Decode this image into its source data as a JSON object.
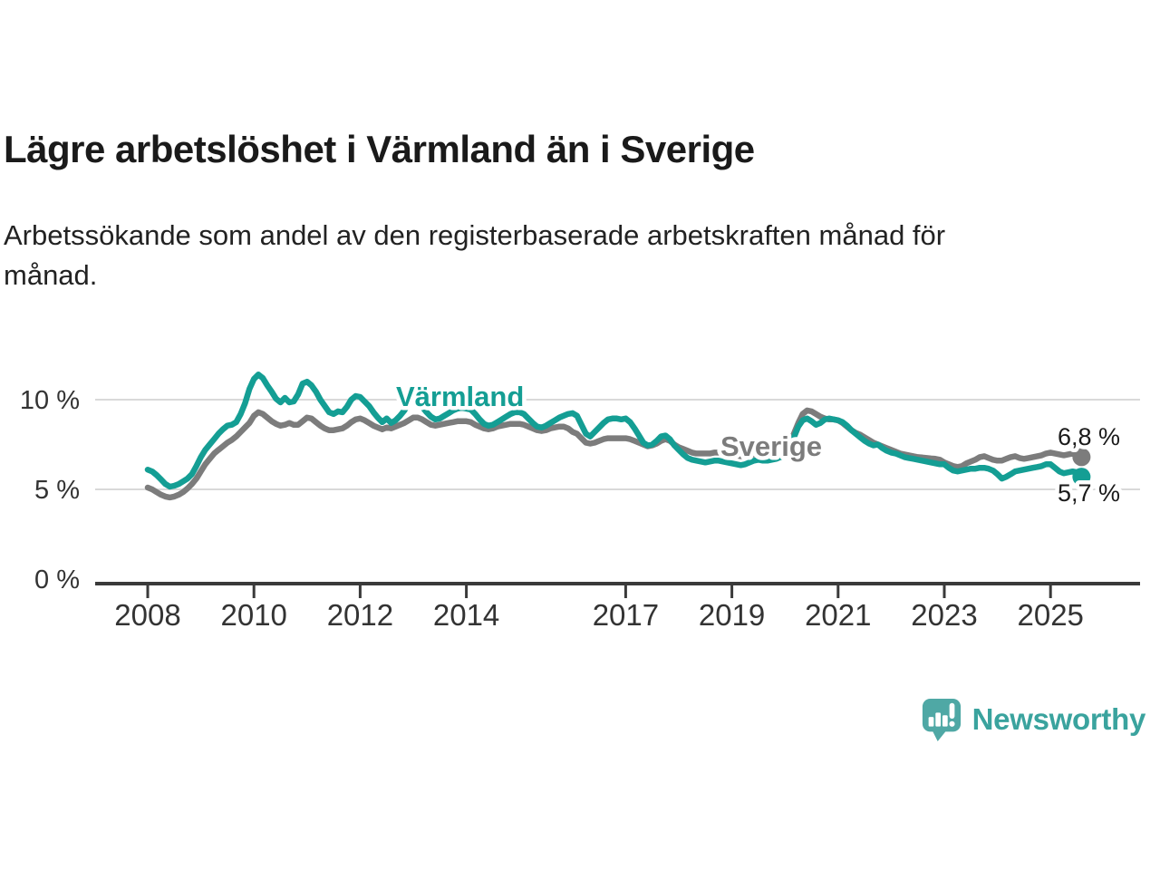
{
  "header": {
    "title": "Lägre arbetslöshet i Värmland än i Sverige",
    "subtitle": "Arbetssökande som andel av den registerbaserade arbetskraften månad för\nmånad."
  },
  "colors": {
    "varmland": "#149e94",
    "sverige": "#7c7c7c",
    "grid": "#d9d9d9",
    "axis": "#3a3a3a",
    "text": "#333333",
    "logo_icon": "#4fa8a5",
    "logo_text": "#3aa39e"
  },
  "chart_data": {
    "type": "line",
    "title": "Lägre arbetslöshet i Värmland än i Sverige",
    "xlabel": "",
    "ylabel": "",
    "x_unit": "month",
    "x_start": "2008-01",
    "x_end": "2025-08",
    "ylim": [
      0,
      12
    ],
    "grid": "horizontal",
    "y_ticks": [
      {
        "value": 0,
        "label": "0 %"
      },
      {
        "value": 5,
        "label": "5 %"
      },
      {
        "value": 10,
        "label": "10 %"
      }
    ],
    "x_ticks": [
      {
        "year": 2008,
        "label": "2008"
      },
      {
        "year": 2010,
        "label": "2010"
      },
      {
        "year": 2012,
        "label": "2012"
      },
      {
        "year": 2014,
        "label": "2014"
      },
      {
        "year": 2017,
        "label": "2017"
      },
      {
        "year": 2019,
        "label": "2019"
      },
      {
        "year": 2021,
        "label": "2021"
      },
      {
        "year": 2023,
        "label": "2023"
      },
      {
        "year": 2025,
        "label": "2025"
      }
    ],
    "series": [
      {
        "name": "Värmland",
        "color": "#149e94",
        "end_label": "5,7 %",
        "end_value": 5.7,
        "values": [
          6.1,
          6.0,
          5.8,
          5.55,
          5.3,
          5.15,
          5.2,
          5.3,
          5.45,
          5.6,
          5.85,
          6.3,
          6.8,
          7.2,
          7.5,
          7.8,
          8.1,
          8.35,
          8.55,
          8.6,
          8.75,
          9.2,
          9.8,
          10.6,
          11.15,
          11.4,
          11.2,
          10.8,
          10.45,
          10.05,
          9.85,
          10.1,
          9.85,
          9.9,
          10.3,
          10.9,
          11.0,
          10.8,
          10.45,
          10.0,
          9.65,
          9.3,
          9.2,
          9.35,
          9.3,
          9.6,
          10.0,
          10.2,
          10.15,
          9.9,
          9.65,
          9.3,
          9.0,
          8.75,
          8.95,
          8.7,
          8.85,
          9.1,
          9.4,
          9.8,
          10.0,
          9.9,
          9.6,
          9.3,
          9.05,
          8.9,
          8.95,
          9.1,
          9.25,
          9.4,
          9.5,
          9.55,
          9.5,
          9.45,
          9.2,
          8.9,
          8.65,
          8.55,
          8.6,
          8.75,
          8.9,
          9.05,
          9.2,
          9.3,
          9.3,
          9.2,
          8.95,
          8.7,
          8.5,
          8.45,
          8.55,
          8.7,
          8.85,
          9.0,
          9.1,
          9.2,
          9.25,
          9.1,
          8.6,
          8.1,
          7.95,
          8.2,
          8.45,
          8.7,
          8.9,
          8.95,
          8.95,
          8.9,
          8.95,
          8.75,
          8.4,
          8.0,
          7.6,
          7.45,
          7.5,
          7.7,
          7.95,
          8.0,
          7.8,
          7.45,
          7.2,
          6.95,
          6.75,
          6.65,
          6.6,
          6.55,
          6.5,
          6.55,
          6.6,
          6.6,
          6.55,
          6.5,
          6.45,
          6.4,
          6.35,
          6.4,
          6.5,
          6.6,
          6.65,
          6.6,
          6.6,
          6.65,
          6.7,
          6.8,
          7.0,
          7.3,
          7.9,
          8.5,
          8.85,
          8.95,
          8.8,
          8.6,
          8.7,
          8.9,
          8.95,
          8.9,
          8.85,
          8.75,
          8.55,
          8.3,
          8.1,
          7.9,
          7.7,
          7.55,
          7.45,
          7.5,
          7.3,
          7.15,
          7.05,
          7.0,
          6.9,
          6.8,
          6.75,
          6.7,
          6.65,
          6.6,
          6.55,
          6.5,
          6.45,
          6.4,
          6.4,
          6.2,
          6.05,
          6.0,
          6.05,
          6.1,
          6.15,
          6.15,
          6.2,
          6.2,
          6.15,
          6.05,
          5.85,
          5.6,
          5.7,
          5.85,
          6.0,
          6.05,
          6.1,
          6.15,
          6.2,
          6.25,
          6.3,
          6.4,
          6.4,
          6.2,
          6.0,
          5.9,
          5.95,
          6.0,
          5.95,
          5.7
        ]
      },
      {
        "name": "Sverige",
        "color": "#7c7c7c",
        "end_label": "6,8 %",
        "end_value": 6.8,
        "values": [
          5.1,
          5.0,
          4.85,
          4.7,
          4.6,
          4.55,
          4.6,
          4.7,
          4.85,
          5.05,
          5.3,
          5.6,
          6.0,
          6.4,
          6.7,
          7.0,
          7.2,
          7.4,
          7.6,
          7.75,
          7.95,
          8.2,
          8.45,
          8.7,
          9.1,
          9.3,
          9.2,
          9.0,
          8.8,
          8.65,
          8.55,
          8.6,
          8.7,
          8.6,
          8.6,
          8.8,
          9.0,
          8.95,
          8.75,
          8.55,
          8.4,
          8.3,
          8.3,
          8.35,
          8.4,
          8.55,
          8.75,
          8.9,
          8.95,
          8.85,
          8.7,
          8.55,
          8.45,
          8.35,
          8.45,
          8.4,
          8.5,
          8.6,
          8.7,
          8.85,
          9.0,
          9.0,
          8.9,
          8.75,
          8.6,
          8.55,
          8.6,
          8.65,
          8.7,
          8.75,
          8.8,
          8.8,
          8.8,
          8.75,
          8.6,
          8.5,
          8.4,
          8.35,
          8.4,
          8.5,
          8.55,
          8.6,
          8.65,
          8.65,
          8.65,
          8.6,
          8.5,
          8.4,
          8.3,
          8.25,
          8.3,
          8.4,
          8.45,
          8.5,
          8.5,
          8.4,
          8.2,
          8.1,
          7.85,
          7.6,
          7.55,
          7.6,
          7.7,
          7.8,
          7.85,
          7.85,
          7.85,
          7.85,
          7.85,
          7.8,
          7.7,
          7.6,
          7.5,
          7.4,
          7.45,
          7.55,
          7.7,
          7.8,
          7.7,
          7.5,
          7.35,
          7.25,
          7.15,
          7.05,
          7.0,
          7.0,
          7.0,
          7.0,
          7.05,
          7.05,
          7.0,
          7.0,
          6.95,
          6.9,
          6.85,
          6.85,
          6.9,
          6.95,
          7.0,
          6.95,
          6.95,
          7.0,
          7.0,
          7.05,
          7.2,
          7.5,
          8.1,
          8.7,
          9.2,
          9.4,
          9.35,
          9.2,
          9.05,
          8.95,
          8.9,
          8.9,
          8.85,
          8.7,
          8.5,
          8.3,
          8.15,
          8.05,
          7.9,
          7.75,
          7.6,
          7.5,
          7.4,
          7.3,
          7.2,
          7.1,
          7.0,
          6.95,
          6.9,
          6.85,
          6.8,
          6.78,
          6.75,
          6.72,
          6.7,
          6.65,
          6.5,
          6.4,
          6.3,
          6.25,
          6.3,
          6.45,
          6.55,
          6.65,
          6.8,
          6.85,
          6.75,
          6.65,
          6.6,
          6.6,
          6.7,
          6.8,
          6.85,
          6.75,
          6.7,
          6.75,
          6.8,
          6.85,
          6.9,
          7.0,
          7.05,
          7.0,
          6.95,
          6.9,
          6.95,
          7.0,
          6.95,
          6.8
        ]
      }
    ],
    "legend": "inline-labels"
  },
  "footer": {
    "brand": "Newsworthy"
  }
}
